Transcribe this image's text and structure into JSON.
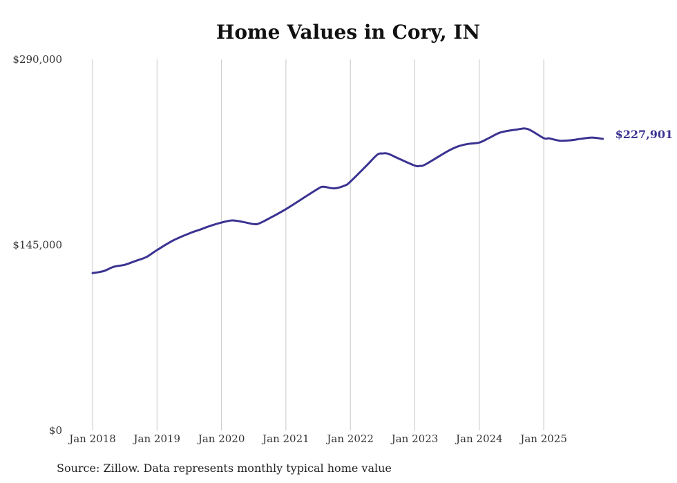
{
  "chart_data": {
    "type": "line",
    "title": "Home Values in Cory, IN",
    "xlabel": "",
    "ylabel": "",
    "ylim": [
      0,
      290000
    ],
    "y_ticks": [
      0,
      145000,
      290000
    ],
    "y_tick_labels": [
      "$0",
      "$145,000",
      "$290,000"
    ],
    "x_ticks": [
      2018,
      2019,
      2020,
      2021,
      2022,
      2023,
      2024,
      2025
    ],
    "x_tick_labels": [
      "Jan 2018",
      "Jan 2019",
      "Jan 2020",
      "Jan 2021",
      "Jan 2022",
      "Jan 2023",
      "Jan 2024",
      "Jan 2025"
    ],
    "grid": "vertical",
    "line_color": "#3b3391",
    "end_label": "$227,901",
    "series": [
      {
        "name": "Typical home value",
        "x": [
          2018.0,
          2018.167,
          2018.333,
          2018.5,
          2018.667,
          2018.833,
          2019.0,
          2019.25,
          2019.5,
          2019.667,
          2019.833,
          2020.0,
          2020.167,
          2020.333,
          2020.5,
          2020.583,
          2020.75,
          2021.0,
          2021.25,
          2021.5,
          2021.583,
          2021.75,
          2021.917,
          2022.0,
          2022.25,
          2022.417,
          2022.5,
          2022.583,
          2022.75,
          2023.0,
          2023.083,
          2023.167,
          2023.5,
          2023.667,
          2023.833,
          2024.0,
          2024.167,
          2024.333,
          2024.583,
          2024.75,
          2025.0,
          2025.083,
          2025.25,
          2025.417,
          2025.583,
          2025.75,
          2025.917
        ],
        "values": [
          123000,
          124500,
          128000,
          129500,
          132500,
          135500,
          141000,
          148500,
          154000,
          157000,
          160000,
          162500,
          164200,
          163000,
          161300,
          161800,
          166000,
          173000,
          181000,
          189000,
          190500,
          189200,
          191500,
          194500,
          207000,
          215500,
          216500,
          216300,
          212500,
          207000,
          206800,
          208000,
          218000,
          222000,
          224000,
          225000,
          229000,
          233000,
          235200,
          235600,
          228500,
          228300,
          226500,
          226800,
          228000,
          228900,
          227901
        ]
      }
    ]
  },
  "footer": {
    "source": "Source: Zillow. Data represents monthly typical home value"
  }
}
